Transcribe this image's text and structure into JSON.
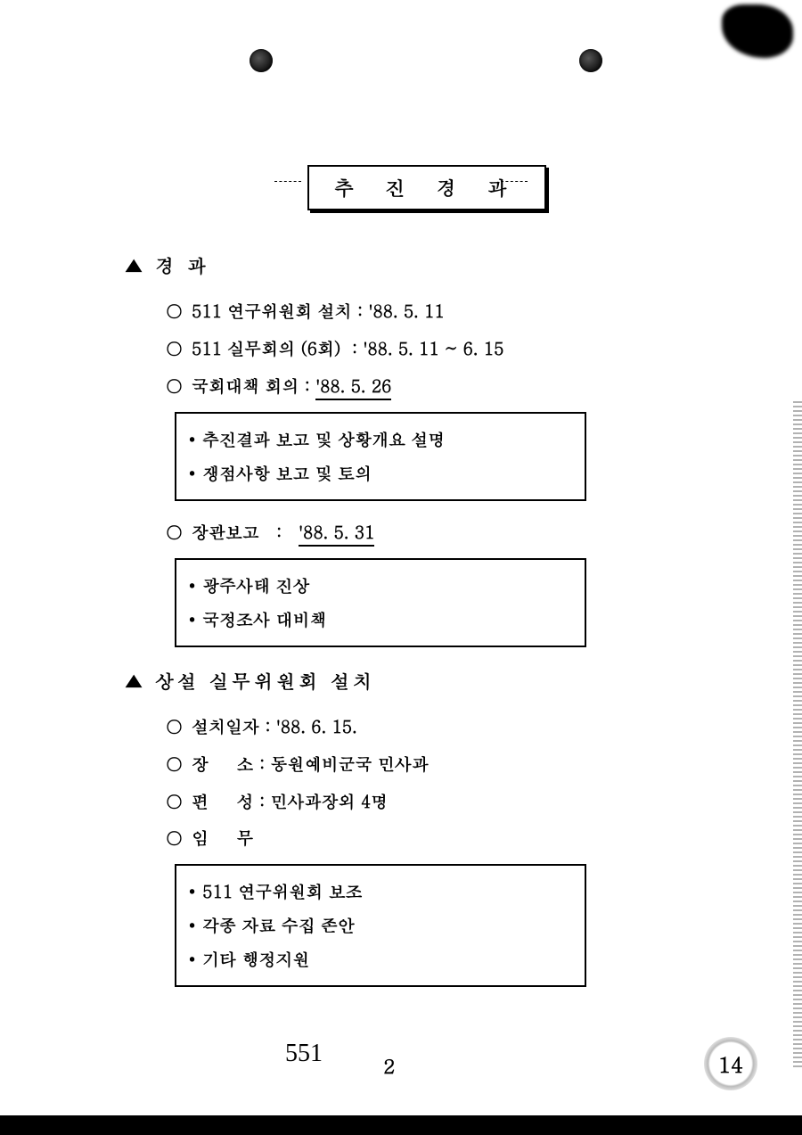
{
  "title": "추 진 경 과",
  "sections": [
    {
      "head": "경 과",
      "items": [
        {
          "label": "511 연구위원회 설치",
          "sep": " : ",
          "value": "'88. 5. 11"
        },
        {
          "label": "511 실무회의 (6회)",
          "sep": "  : ",
          "value": "'88. 5. 11 ~ 6. 15"
        },
        {
          "label": "국회대책 회의",
          "sep": " : ",
          "value": "'88. 5. 26",
          "underline_value": true,
          "box": [
            "추진결과 보고 및 상황개요 설명",
            "쟁점사항 보고 및 토의"
          ]
        },
        {
          "label": "장관보고",
          "sep": "   :   ",
          "value": "'88. 5. 31",
          "underline_value": true,
          "box": [
            "광주사태 진상",
            "국정조사 대비책"
          ]
        }
      ]
    },
    {
      "head": "상설 실무위원회 설치",
      "items": [
        {
          "label": "설치일자",
          "sep": " : ",
          "value": "'88. 6. 15."
        },
        {
          "label": "장     소",
          "sep": " : ",
          "value": "동원예비군국 민사과"
        },
        {
          "label": "편     성",
          "sep": " : ",
          "value": "민사과장외 4명"
        },
        {
          "label": "임     무",
          "sep": "",
          "value": "",
          "box": [
            "511 연구위원회 보조",
            "각종 자료 수집 존안",
            "기타 행정지원"
          ]
        }
      ]
    }
  ],
  "footer": {
    "left_num": "551",
    "center_num": "2",
    "stamp": "14"
  },
  "colors": {
    "ink": "#000000",
    "paper": "#ffffff"
  }
}
